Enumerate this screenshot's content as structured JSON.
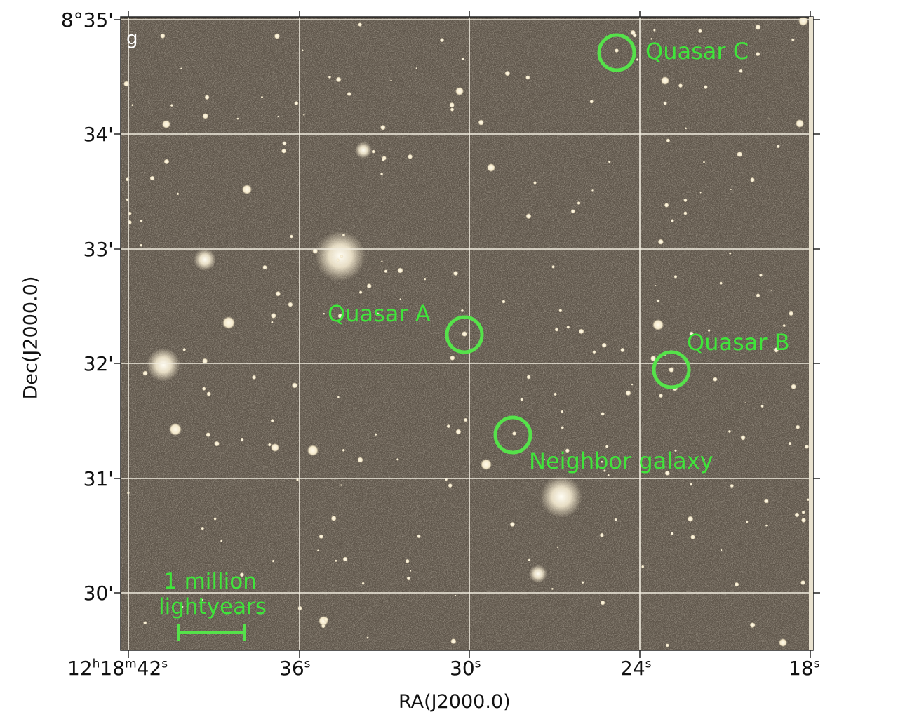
{
  "figure": {
    "band_label": "g",
    "x_axis_title": "RA(J2000.0)",
    "y_axis_title": "Dec(J2000.0)",
    "ra_ticks": [
      {
        "h": "12",
        "hs": "h",
        "m": "18",
        "ms": "m",
        "s": "42",
        "ss": "s"
      },
      {
        "s": "36",
        "ss": "s"
      },
      {
        "s": "30",
        "ss": "s"
      },
      {
        "s": "24",
        "ss": "s"
      },
      {
        "s": "18",
        "ss": "s"
      }
    ],
    "dec_ticks": [
      "8°35'",
      "34'",
      "33'",
      "32'",
      "31'",
      "30'"
    ],
    "annotations": {
      "quasar_a": "Quasar A",
      "quasar_b": "Quasar B",
      "quasar_c": "Quasar C",
      "neighbor_galaxy": "Neighbor galaxy"
    },
    "scale_bar": {
      "line1": "1 million",
      "line2": "lightyears"
    },
    "colors": {
      "sky": "#5e554a",
      "grid": "#f2ede0",
      "annotation": "#3fe53a",
      "star": "#fbf3dc"
    }
  }
}
